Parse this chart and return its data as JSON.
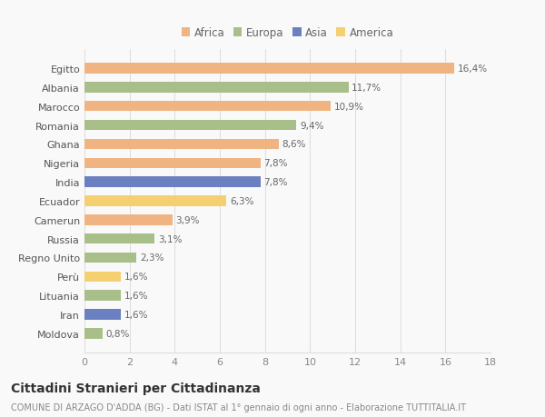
{
  "countries": [
    "Egitto",
    "Albania",
    "Marocco",
    "Romania",
    "Ghana",
    "Nigeria",
    "India",
    "Ecuador",
    "Camerun",
    "Russia",
    "Regno Unito",
    "Perù",
    "Lituania",
    "Iran",
    "Moldova"
  ],
  "values": [
    16.4,
    11.7,
    10.9,
    9.4,
    8.6,
    7.8,
    7.8,
    6.3,
    3.9,
    3.1,
    2.3,
    1.6,
    1.6,
    1.6,
    0.8
  ],
  "labels": [
    "16,4%",
    "11,7%",
    "10,9%",
    "9,4%",
    "8,6%",
    "7,8%",
    "7,8%",
    "6,3%",
    "3,9%",
    "3,1%",
    "2,3%",
    "1,6%",
    "1,6%",
    "1,6%",
    "0,8%"
  ],
  "colors": [
    "#F0B482",
    "#A8BF8A",
    "#F0B482",
    "#A8BF8A",
    "#F0B482",
    "#F0B482",
    "#6B80C0",
    "#F5D070",
    "#F0B482",
    "#A8BF8A",
    "#A8BF8A",
    "#F5D070",
    "#A8BF8A",
    "#6B80C0",
    "#A8BF8A"
  ],
  "legend_labels": [
    "Africa",
    "Europa",
    "Asia",
    "America"
  ],
  "legend_colors": [
    "#F0B482",
    "#A8BF8A",
    "#6B80C0",
    "#F5D070"
  ],
  "title": "Cittadini Stranieri per Cittadinanza",
  "subtitle": "COMUNE DI ARZAGO D'ADDA (BG) - Dati ISTAT al 1° gennaio di ogni anno - Elaborazione TUTTITALIA.IT",
  "xlim": [
    0,
    18
  ],
  "xticks": [
    0,
    2,
    4,
    6,
    8,
    10,
    12,
    14,
    16,
    18
  ],
  "background_color": "#f9f9f9",
  "grid_color": "#dddddd",
  "bar_height": 0.55,
  "label_fontsize": 7.5,
  "tick_fontsize": 8.0,
  "legend_fontsize": 8.5,
  "title_fontsize": 10,
  "subtitle_fontsize": 7.0
}
